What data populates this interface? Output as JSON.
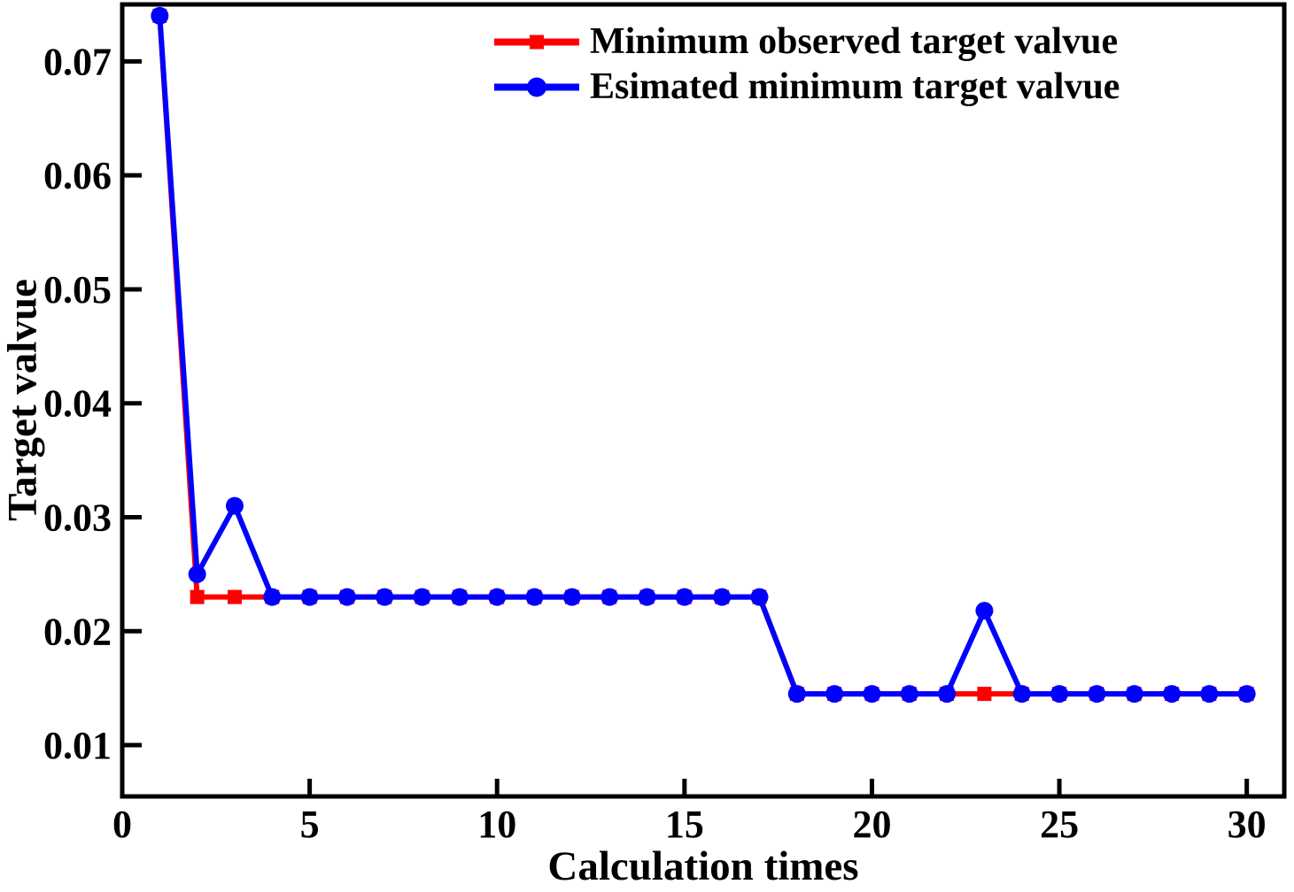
{
  "figure": {
    "background": "#ffffff",
    "frame_color": "#000000",
    "text_color": "#000000"
  },
  "chart_data": {
    "type": "line",
    "title": "",
    "xlabel": "Calculation times",
    "ylabel": "Target valvue",
    "grid": false,
    "legend_position": "top-center",
    "xlim": [
      0,
      31
    ],
    "ylim": [
      0.0055,
      0.075
    ],
    "xticks": [
      0,
      5,
      10,
      15,
      20,
      25,
      30
    ],
    "xtick_labels": [
      "0",
      "5",
      "10",
      "15",
      "20",
      "25",
      "30"
    ],
    "yticks": [
      0.01,
      0.02,
      0.03,
      0.04,
      0.05,
      0.06,
      0.07
    ],
    "ytick_labels": [
      "0.01",
      "0.02",
      "0.03",
      "0.04",
      "0.05",
      "0.06",
      "0.07"
    ],
    "x": [
      1,
      2,
      3,
      4,
      5,
      6,
      7,
      8,
      9,
      10,
      11,
      12,
      13,
      14,
      15,
      16,
      17,
      18,
      19,
      20,
      21,
      22,
      23,
      24,
      25,
      26,
      27,
      28,
      29,
      30
    ],
    "series": [
      {
        "name": "Minimum observed target valvue",
        "color": "#ff0000",
        "marker": "square",
        "values": [
          0.074,
          0.023,
          0.023,
          0.023,
          0.023,
          0.023,
          0.023,
          0.023,
          0.023,
          0.023,
          0.023,
          0.023,
          0.023,
          0.023,
          0.023,
          0.023,
          0.023,
          0.0145,
          0.0145,
          0.0145,
          0.0145,
          0.0145,
          0.0145,
          0.0145,
          0.0145,
          0.0145,
          0.0145,
          0.0145,
          0.0145,
          0.0145
        ]
      },
      {
        "name": "Esimated minimum target valvue",
        "color": "#0000ff",
        "marker": "circle",
        "values": [
          0.074,
          0.025,
          0.031,
          0.023,
          0.023,
          0.023,
          0.023,
          0.023,
          0.023,
          0.023,
          0.023,
          0.023,
          0.023,
          0.023,
          0.023,
          0.023,
          0.023,
          0.0145,
          0.0145,
          0.0145,
          0.0145,
          0.0145,
          0.0218,
          0.0145,
          0.0145,
          0.0145,
          0.0145,
          0.0145,
          0.0145,
          0.0145
        ]
      }
    ]
  }
}
